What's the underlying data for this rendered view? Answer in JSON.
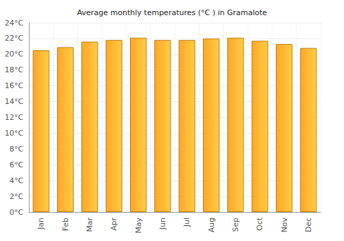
{
  "chart_data": {
    "type": "bar",
    "title": "Average monthly temperatures (°C ) in Gramalote",
    "categories": [
      "Jan",
      "Feb",
      "Mar",
      "Apr",
      "May",
      "Jun",
      "Jul",
      "Aug",
      "Sep",
      "Oct",
      "Nov",
      "Dec"
    ],
    "values": [
      20.5,
      20.9,
      21.6,
      21.8,
      22.1,
      21.8,
      21.8,
      22.0,
      22.1,
      21.7,
      21.3,
      20.8
    ],
    "color": "#ffa726",
    "ylim": [
      0,
      24
    ],
    "yticks": [
      {
        "value": 0,
        "label": "0°C"
      },
      {
        "value": 2,
        "label": "2°C"
      },
      {
        "value": 4,
        "label": "4°C"
      },
      {
        "value": 6,
        "label": "6°C"
      },
      {
        "value": 8,
        "label": "8°C"
      },
      {
        "value": 10,
        "label": "10°C"
      },
      {
        "value": 12,
        "label": "12°C"
      },
      {
        "value": 14,
        "label": "14°C"
      },
      {
        "value": 16,
        "label": "16°C"
      },
      {
        "value": 18,
        "label": "18°C"
      },
      {
        "value": 20,
        "label": "20°C"
      },
      {
        "value": 22,
        "label": "22°C"
      },
      {
        "value": 24,
        "label": "24°C"
      }
    ],
    "grid": true
  }
}
